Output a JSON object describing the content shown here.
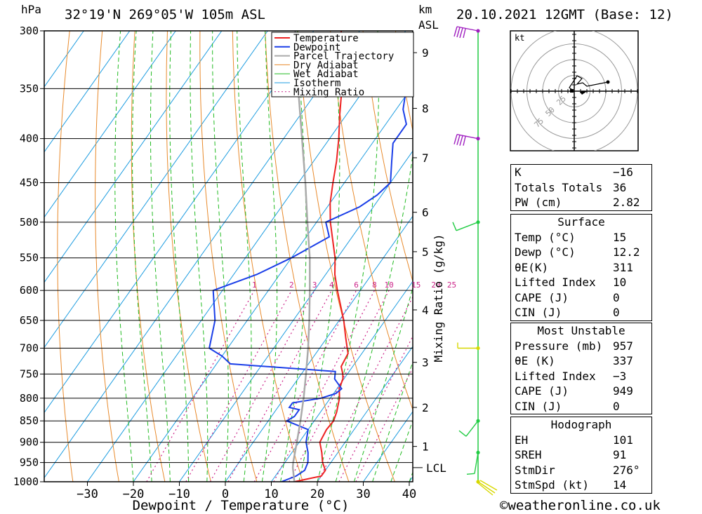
{
  "header": {
    "hpa_unit": "hPa",
    "location": "32°19'N  269°05'W  105m  ASL",
    "km_unit": "km",
    "asl_unit": "ASL",
    "datetime": "20.10.2021  12GMT  (Base: 12)"
  },
  "colors": {
    "temperature": "#ee2222",
    "dewpoint": "#1a3ee8",
    "parcel": "#aaaaaa",
    "dry_adiabat": "#e88a2c",
    "wet_adiabat": "#22bb22",
    "isotherm": "#1c9ce0",
    "mixing_ratio": "#cc2288",
    "wind_purple": "#a020c0",
    "wind_green": "#22cc44",
    "wind_yellow": "#d8d800"
  },
  "chart_data": {
    "type": "skew-t",
    "xlabel": "Dewpoint / Temperature (°C)",
    "ylabel_right": "Mixing Ratio (g/kg)",
    "x_ticks": [
      "−30",
      "−20",
      "−10",
      "0",
      "10",
      "20",
      "30",
      "40"
    ],
    "x_tick_values": [
      -30,
      -20,
      -10,
      0,
      10,
      20,
      30,
      40
    ],
    "xlim": [
      -40,
      40
    ],
    "pressure_levels": [
      300,
      350,
      400,
      450,
      500,
      550,
      600,
      650,
      700,
      750,
      800,
      850,
      900,
      950,
      1000
    ],
    "pressure_labels": [
      "300",
      "350",
      "400",
      "450",
      "500",
      "550",
      "600",
      "650",
      "700",
      "750",
      "800",
      "850",
      "900",
      "950",
      "1000"
    ],
    "height_km_labels": [
      "9",
      "8",
      "7",
      "6",
      "5",
      "4",
      "3",
      "2",
      "1"
    ],
    "height_km_pressures": [
      318,
      369,
      421,
      487,
      541,
      632,
      727,
      820,
      910
    ],
    "lcl_label": "LCL",
    "lcl_pressure": 963,
    "mixing_ratio_labels": [
      "1",
      "2",
      "3",
      "4",
      "6",
      "8",
      "10",
      "15",
      "20",
      "25"
    ],
    "mixing_ratio_values": [
      1,
      2,
      3,
      4,
      6,
      8,
      10,
      15,
      20,
      25
    ],
    "legend": [
      "Temperature",
      "Dewpoint",
      "Parcel Trajectory",
      "Dry Adiabat",
      "Wet Adiabat",
      "Isotherm",
      "Mixing Ratio"
    ],
    "series": [
      {
        "name": "Temperature",
        "points": [
          [
            1000,
            15
          ],
          [
            985,
            20
          ],
          [
            970,
            20
          ],
          [
            950,
            18.2
          ],
          [
            925,
            16.5
          ],
          [
            900,
            14.5
          ],
          [
            870,
            14
          ],
          [
            850,
            14.2
          ],
          [
            830,
            13.5
          ],
          [
            800,
            12
          ],
          [
            780,
            10.5
          ],
          [
            760,
            9.8
          ],
          [
            750,
            9
          ],
          [
            735,
            7.5
          ],
          [
            710,
            7
          ],
          [
            700,
            6
          ],
          [
            680,
            4
          ],
          [
            650,
            1
          ],
          [
            600,
            -5
          ],
          [
            575,
            -8
          ],
          [
            550,
            -10.5
          ],
          [
            500,
            -17
          ],
          [
            475,
            -20
          ],
          [
            450,
            -22.5
          ],
          [
            425,
            -25
          ],
          [
            400,
            -28
          ],
          [
            375,
            -31.5
          ],
          [
            350,
            -35
          ],
          [
            325,
            -39.5
          ],
          [
            300,
            -44
          ]
        ]
      },
      {
        "name": "Dewpoint",
        "points": [
          [
            1000,
            12.2
          ],
          [
            985,
            14.5
          ],
          [
            970,
            15.5
          ],
          [
            950,
            15
          ],
          [
            925,
            13.5
          ],
          [
            900,
            11.5
          ],
          [
            870,
            10
          ],
          [
            850,
            4
          ],
          [
            840,
            5
          ],
          [
            825,
            5
          ],
          [
            820,
            2.5
          ],
          [
            810,
            2.5
          ],
          [
            800,
            8
          ],
          [
            790,
            10.5
          ],
          [
            780,
            11
          ],
          [
            760,
            8
          ],
          [
            745,
            7
          ],
          [
            730,
            -17
          ],
          [
            715,
            -20
          ],
          [
            700,
            -24
          ],
          [
            650,
            -27
          ],
          [
            600,
            -32
          ],
          [
            575,
            -25
          ],
          [
            550,
            -20
          ],
          [
            520,
            -15
          ],
          [
            500,
            -18
          ],
          [
            480,
            -13
          ],
          [
            465,
            -11
          ],
          [
            450,
            -10
          ],
          [
            425,
            -13
          ],
          [
            405,
            -15.5
          ],
          [
            385,
            -15.5
          ],
          [
            370,
            -18.5
          ],
          [
            350,
            -21
          ],
          [
            325,
            -24
          ],
          [
            310,
            -25
          ],
          [
            300,
            -28
          ]
        ]
      },
      {
        "name": "Parcel Trajectory",
        "points": [
          [
            1000,
            15
          ],
          [
            963,
            12.5
          ],
          [
            950,
            11.8
          ],
          [
            900,
            9.5
          ],
          [
            850,
            7
          ],
          [
            800,
            4.2
          ],
          [
            750,
            1
          ],
          [
            700,
            -2.5
          ],
          [
            650,
            -6.5
          ],
          [
            600,
            -11
          ],
          [
            550,
            -16
          ],
          [
            500,
            -22
          ],
          [
            450,
            -28.5
          ],
          [
            400,
            -36
          ],
          [
            350,
            -44.5
          ],
          [
            300,
            -54
          ]
        ]
      }
    ],
    "wind_barbs": [
      {
        "pressure": 300,
        "color": "purple"
      },
      {
        "pressure": 400,
        "color": "purple"
      },
      {
        "pressure": 500,
        "color": "green"
      },
      {
        "pressure": 700,
        "color": "yellow"
      },
      {
        "pressure": 850,
        "color": "green"
      },
      {
        "pressure": 925,
        "color": "green"
      },
      {
        "pressure": 1000,
        "color": "yellow"
      }
    ],
    "hodograph": {
      "unit": "kt",
      "ring_labels": [
        "25",
        "50",
        "75"
      ],
      "ring_values": [
        25,
        50,
        75
      ]
    }
  },
  "indices": {
    "top": [
      {
        "label": "K",
        "value": "−16"
      },
      {
        "label": "Totals Totals",
        "value": "36"
      },
      {
        "label": "PW (cm)",
        "value": "2.82"
      }
    ],
    "surface_title": "Surface",
    "surface": [
      {
        "label": "Temp (°C)",
        "value": "15"
      },
      {
        "label": "Dewp (°C)",
        "value": "12.2"
      },
      {
        "label": "θE(K)",
        "value": "311"
      },
      {
        "label": "Lifted Index",
        "value": "10"
      },
      {
        "label": "CAPE (J)",
        "value": "0"
      },
      {
        "label": "CIN (J)",
        "value": "0"
      }
    ],
    "mu_title": "Most Unstable",
    "most_unstable": [
      {
        "label": "Pressure (mb)",
        "value": "957"
      },
      {
        "label": "θE (K)",
        "value": "337"
      },
      {
        "label": "Lifted Index",
        "value": "−3"
      },
      {
        "label": "CAPE (J)",
        "value": "949"
      },
      {
        "label": "CIN (J)",
        "value": "0"
      }
    ],
    "hodo_title": "Hodograph",
    "hodograph": [
      {
        "label": "EH",
        "value": "101"
      },
      {
        "label": "SREH",
        "value": "91"
      },
      {
        "label": "StmDir",
        "value": "276°"
      },
      {
        "label": "StmSpd (kt)",
        "value": "14"
      }
    ]
  },
  "footer": {
    "copyright": "©weatheronline.co.uk"
  }
}
